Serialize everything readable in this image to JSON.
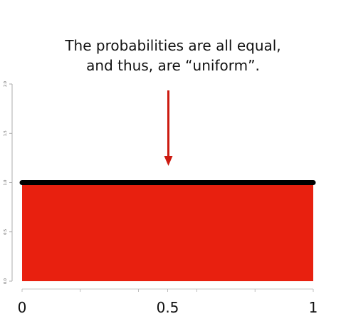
{
  "chart_data": {
    "type": "area",
    "x": [
      0,
      1
    ],
    "y": [
      1.0,
      1.0
    ],
    "xlim": [
      0,
      1
    ],
    "ylim": [
      0.0,
      2.0
    ],
    "x_ticks": [
      0,
      0.5,
      1
    ],
    "x_tick_labels": [
      "0",
      "0.5",
      "1"
    ],
    "y_ticks": [
      0.0,
      0.5,
      1.0,
      1.5,
      2.0
    ],
    "y_tick_labels": [
      "0.0",
      "0.5",
      "1.0",
      "1.5",
      "2.0"
    ],
    "x_minor_ticks": [
      0.2,
      0.4,
      0.6,
      0.8
    ],
    "fill_color": "#e8200f",
    "line_color": "#000000",
    "arrow_color": "#cc1a10",
    "grid": false,
    "annotation": {
      "lines": [
        "The probabilities are all equal,",
        "and thus, are “uniform”."
      ],
      "arrow_target_x": 0.5,
      "arrow_target_y": 1.0
    }
  }
}
